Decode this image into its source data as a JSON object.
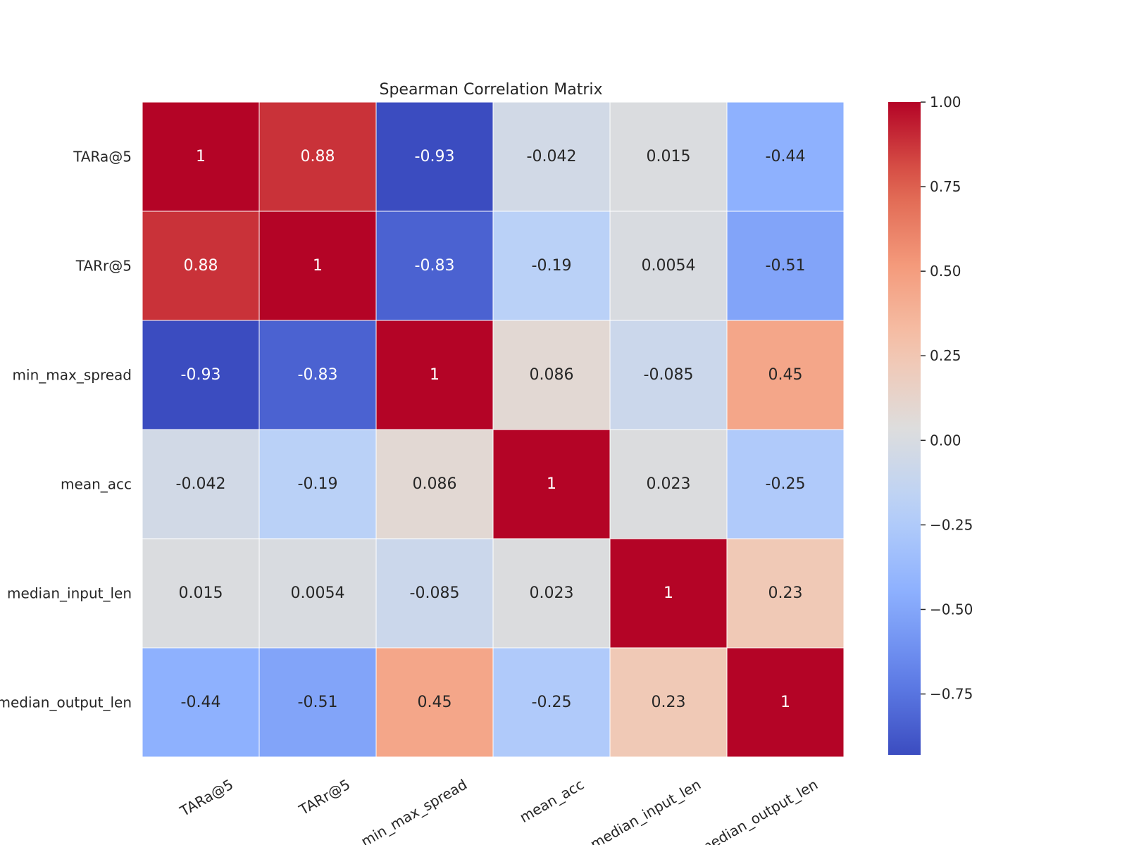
{
  "chart_data": {
    "type": "heatmap",
    "title": "Spearman Correlation Matrix",
    "colormap": "coolwarm",
    "vmin": -0.93,
    "vmax": 1.0,
    "row_labels": [
      "TARa@5",
      "TARr@5",
      "min_max_spread",
      "mean_acc",
      "median_input_len",
      "median_output_len"
    ],
    "col_labels": [
      "TARa@5",
      "TARr@5",
      "min_max_spread",
      "mean_acc",
      "median_input_len",
      "median_output_len"
    ],
    "values": [
      [
        1,
        0.88,
        -0.93,
        -0.042,
        0.015,
        -0.44
      ],
      [
        0.88,
        1,
        -0.83,
        -0.19,
        0.0054,
        -0.51
      ],
      [
        -0.93,
        -0.83,
        1,
        0.086,
        -0.085,
        0.45
      ],
      [
        -0.042,
        -0.19,
        0.086,
        1,
        0.023,
        -0.25
      ],
      [
        0.015,
        0.0054,
        -0.085,
        0.023,
        1,
        0.23
      ],
      [
        -0.44,
        -0.51,
        0.45,
        -0.25,
        0.23,
        1
      ]
    ],
    "annotations": [
      [
        "1",
        "0.88",
        "-0.93",
        "-0.042",
        "0.015",
        "-0.44"
      ],
      [
        "0.88",
        "1",
        "-0.83",
        "-0.19",
        "0.0054",
        "-0.51"
      ],
      [
        "-0.93",
        "-0.83",
        "1",
        "0.086",
        "-0.085",
        "0.45"
      ],
      [
        "-0.042",
        "-0.19",
        "0.086",
        "1",
        "0.023",
        "-0.25"
      ],
      [
        "0.015",
        "0.0054",
        "-0.085",
        "0.023",
        "1",
        "0.23"
      ],
      [
        "-0.44",
        "-0.51",
        "0.45",
        "-0.25",
        "0.23",
        "1"
      ]
    ],
    "colorbar": {
      "ticks": [
        1.0,
        0.75,
        0.5,
        0.25,
        0.0,
        -0.25,
        -0.5,
        -0.75
      ],
      "tick_labels": [
        "1.00",
        "0.75",
        "0.50",
        "0.25",
        "0.00",
        "−0.25",
        "−0.50",
        "−0.75"
      ]
    }
  }
}
